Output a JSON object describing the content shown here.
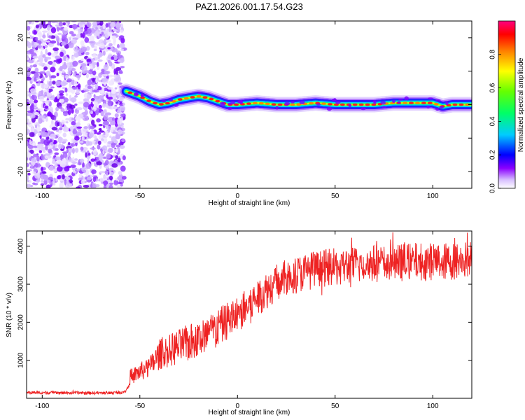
{
  "title": "PAZ1.2026.001.17.54.G23",
  "chart_data": [
    {
      "type": "heatmap",
      "xlabel": "Height of straight line (km)",
      "ylabel": "Frequency (Hz)",
      "xlim": [
        -108,
        120
      ],
      "ylim": [
        -25,
        25
      ],
      "xticks": [
        -100,
        -50,
        0,
        50,
        100
      ],
      "xtick_labels": [
        "-100",
        "-50",
        "0",
        "50",
        "100"
      ],
      "yticks": [
        -20,
        -10,
        0,
        10,
        20
      ],
      "ytick_labels": [
        "-20",
        "-10",
        "0",
        "10",
        "20"
      ],
      "noise_region_x": [
        -108,
        -58
      ],
      "ridge": {
        "x": [
          -57,
          -50,
          -45,
          -40,
          -35,
          -30,
          -25,
          -20,
          -15,
          -10,
          -5,
          0,
          10,
          20,
          30,
          40,
          50,
          60,
          70,
          80,
          90,
          100,
          105,
          110,
          120
        ],
        "y": [
          4,
          2.5,
          1,
          0,
          0.5,
          1.5,
          2,
          2.5,
          2,
          1,
          0,
          0,
          0.5,
          0,
          0,
          0.5,
          0,
          0,
          0,
          0.5,
          0.5,
          0.5,
          -0.5,
          0,
          0
        ]
      },
      "colorbar": {
        "label": "Normalized spectral amplitude",
        "range": [
          0.0,
          1.0
        ],
        "ticks": [
          0.0,
          0.2,
          0.4,
          0.6,
          0.8
        ],
        "tick_labels": [
          "0.0",
          "0.2",
          "0.4",
          "0.6",
          "0.8"
        ],
        "colors": [
          "#ffffff",
          "#d0b0ff",
          "#8a00ff",
          "#0000ff",
          "#00ffff",
          "#00ff00",
          "#ffff00",
          "#ff8000",
          "#ff0000",
          "#ff0080"
        ]
      }
    },
    {
      "type": "line",
      "xlabel": "Height of straight line (km)",
      "ylabel": "SNR (10 * v/v)",
      "xlim": [
        -108,
        120
      ],
      "ylim": [
        0,
        4400
      ],
      "xticks": [
        -100,
        -50,
        0,
        50,
        100
      ],
      "xtick_labels": [
        "-100",
        "-50",
        "0",
        "50",
        "100"
      ],
      "yticks": [
        1000,
        2000,
        3000,
        4000
      ],
      "ytick_labels": [
        "1000",
        "2000",
        "3000",
        "4000"
      ],
      "color": "#ee2222",
      "series": [
        {
          "name": "SNR",
          "x": [
            -108,
            -100,
            -90,
            -80,
            -70,
            -60,
            -57,
            -55,
            -50,
            -45,
            -40,
            -35,
            -30,
            -25,
            -20,
            -15,
            -10,
            -5,
            0,
            5,
            10,
            15,
            20,
            25,
            30,
            40,
            50,
            60,
            70,
            80,
            90,
            100,
            110,
            120
          ],
          "y": [
            150,
            150,
            140,
            140,
            140,
            150,
            200,
            550,
            700,
            800,
            1150,
            1250,
            1350,
            1450,
            1550,
            1700,
            1850,
            2050,
            2200,
            2400,
            2650,
            2850,
            3050,
            3150,
            3250,
            3400,
            3450,
            3500,
            3550,
            3550,
            3600,
            3600,
            3600,
            3650
          ]
        }
      ]
    }
  ]
}
